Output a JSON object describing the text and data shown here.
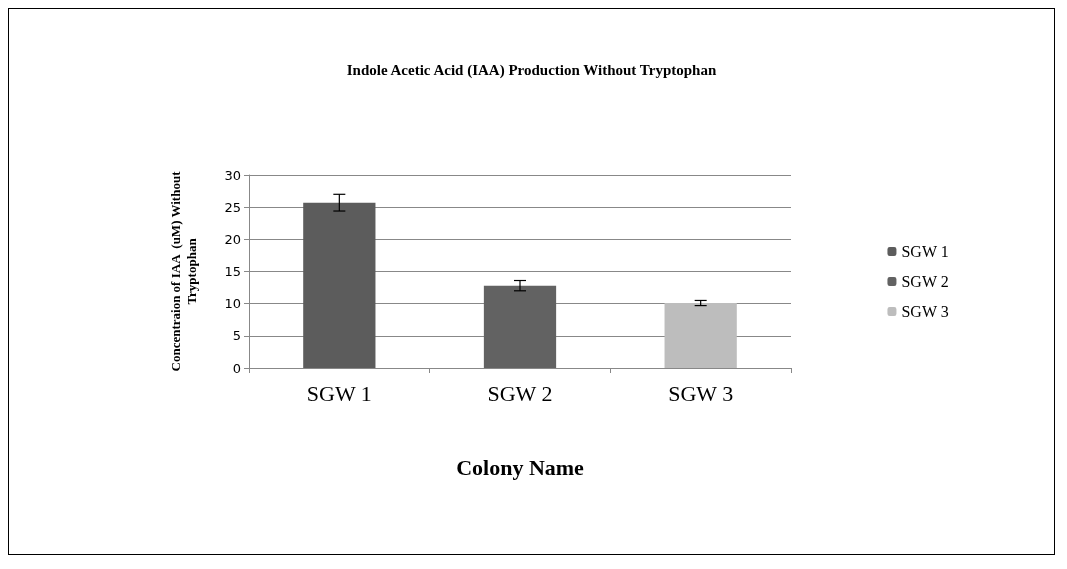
{
  "chart_data": {
    "type": "bar",
    "title": "Indole Acetic Acid (IAA) Production Without Tryptophan",
    "xlabel": "Colony Name",
    "ylabel": "Concentraion of IAA  (uM) Without\nTryptophan",
    "categories": [
      "SGW 1",
      "SGW 2",
      "SGW 3"
    ],
    "series": [
      {
        "name": "SGW 1",
        "color": "#5c5c5c",
        "values": [
          25.7,
          null,
          null
        ],
        "errors": [
          1.3,
          null,
          null
        ]
      },
      {
        "name": "SGW 2",
        "color": "#626262",
        "values": [
          null,
          12.8,
          null
        ],
        "errors": [
          null,
          0.8,
          null
        ]
      },
      {
        "name": "SGW 3",
        "color": "#bdbdbd",
        "values": [
          null,
          null,
          10.1
        ],
        "errors": [
          null,
          null,
          0.4
        ]
      }
    ],
    "ylim": [
      0,
      30
    ],
    "yticks": [
      0,
      5,
      10,
      15,
      20,
      25,
      30
    ],
    "grid": "y",
    "legend": "right"
  }
}
